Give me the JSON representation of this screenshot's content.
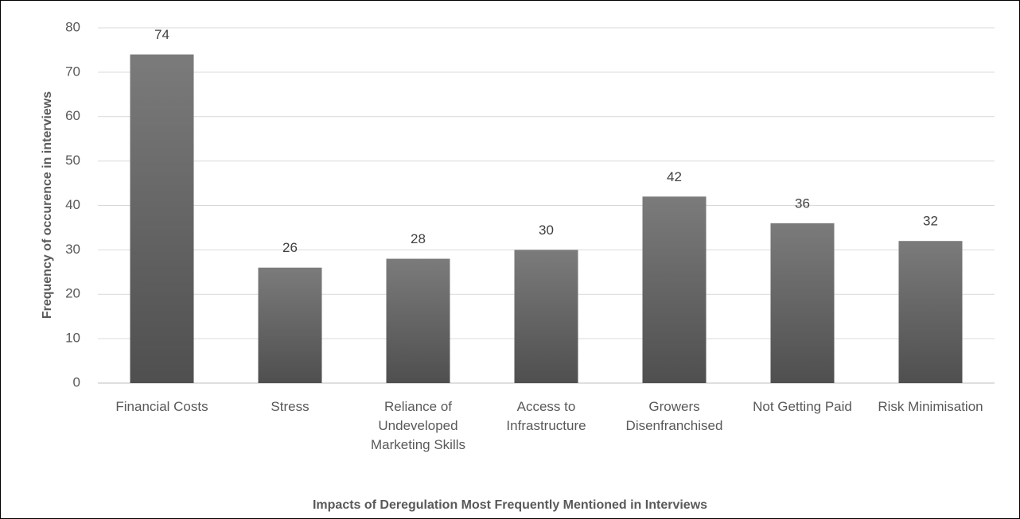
{
  "chart_data": {
    "type": "bar",
    "x_label": "Impacts of Deregulation Most Frequently Mentioned in Interviews",
    "y_label": "Frequency of occurence in interviews",
    "categories": [
      "Financial Costs",
      "Stress",
      "Reliance of Undeveloped Marketing Skills",
      "Access to Infrastructure",
      "Growers Disenfranchised",
      "Not Getting Paid",
      "Risk Minimisation"
    ],
    "values": [
      74,
      26,
      28,
      30,
      42,
      36,
      32
    ],
    "color": "#4f4f4f",
    "ylim": [
      0,
      80
    ],
    "yticks": [
      0,
      10,
      20,
      30,
      40,
      50,
      60,
      70,
      80
    ],
    "grid": true
  }
}
